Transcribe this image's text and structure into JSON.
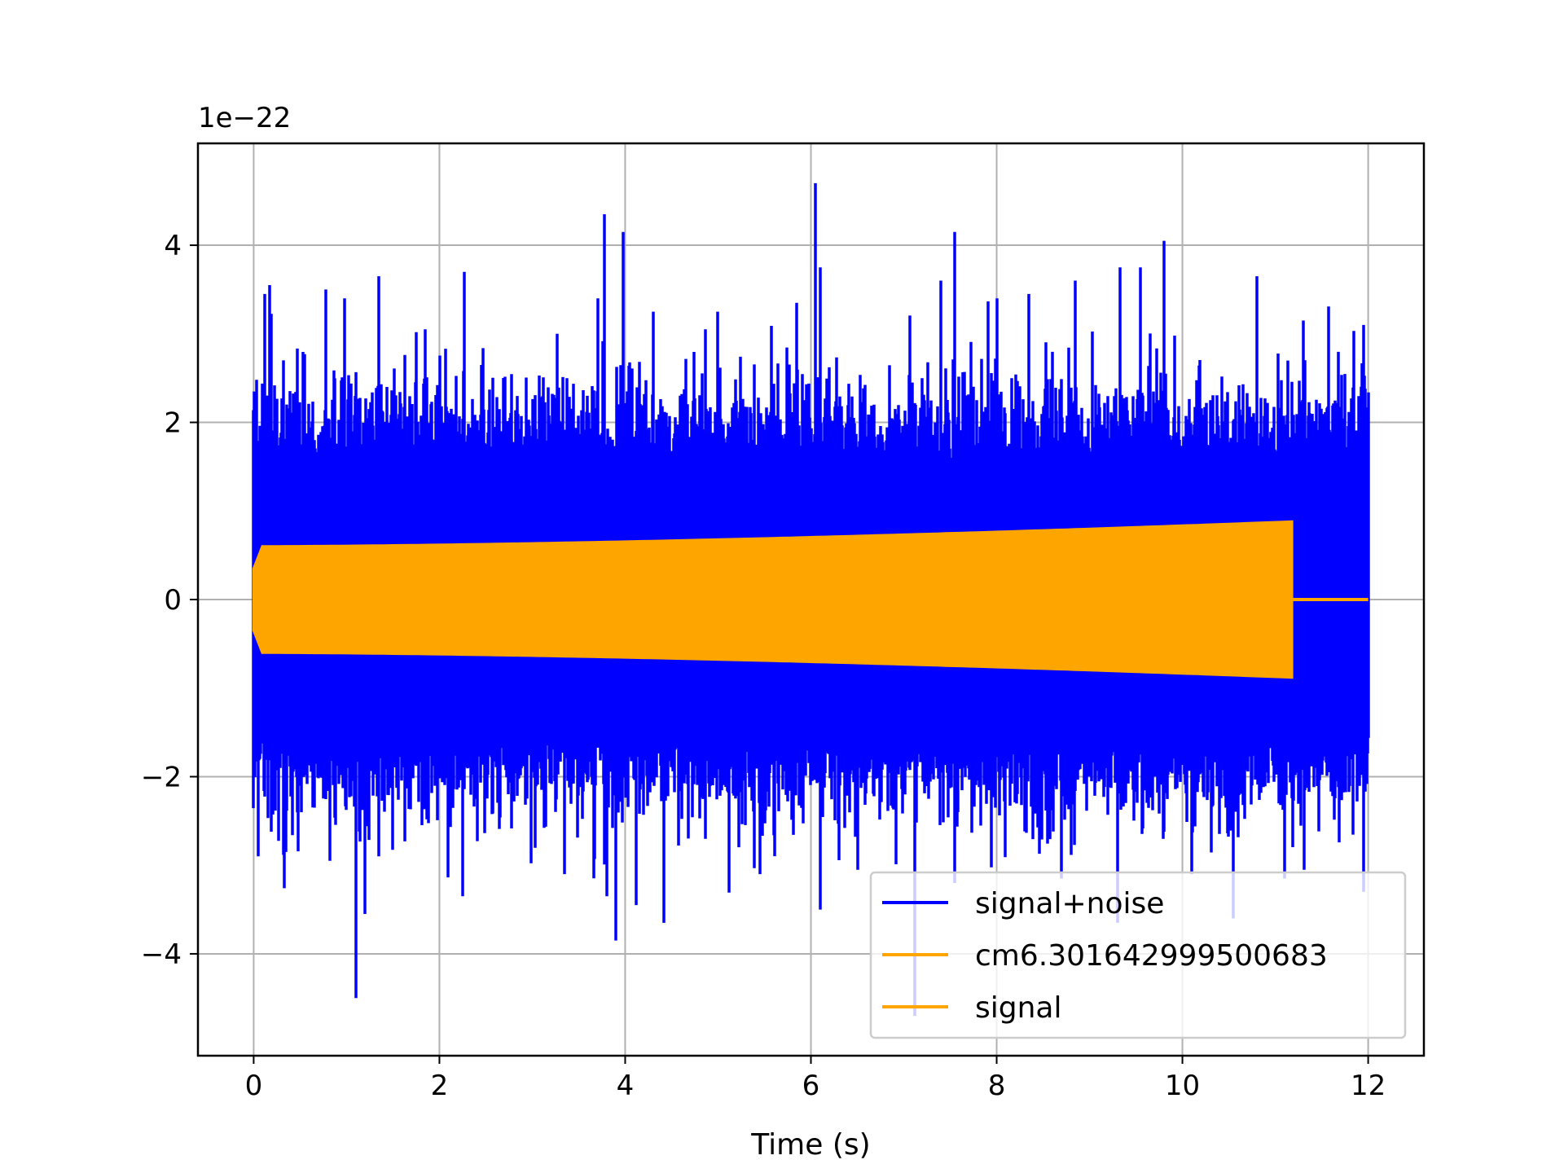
{
  "chart_data": {
    "type": "line",
    "title": "",
    "xlabel": "Time (s)",
    "ylabel": "",
    "offset_text": "1e−22",
    "xlim": [
      -0.6,
      12.6
    ],
    "ylim": [
      -5.15,
      5.15
    ],
    "x_ticks": [
      0,
      2,
      4,
      6,
      8,
      10,
      12
    ],
    "x_tick_labels": [
      "0",
      "2",
      "4",
      "6",
      "8",
      "10",
      "12"
    ],
    "y_ticks": [
      -4,
      -2,
      0,
      2,
      4
    ],
    "y_tick_labels": [
      "−4",
      "−2",
      "0",
      "2",
      "4"
    ],
    "grid": true,
    "legend_position": "lower-right",
    "series": [
      {
        "name": "signal+noise",
        "color": "#0000ff",
        "x_range": [
          0,
          12
        ],
        "typical_envelope": [
          -2.2,
          2.2
        ],
        "peaks": [
          {
            "x": 0.12,
            "y": 3.45
          },
          {
            "x": 0.17,
            "y": 3.55
          },
          {
            "x": 0.32,
            "y": 2.7
          },
          {
            "x": 0.78,
            "y": 3.5
          },
          {
            "x": 0.98,
            "y": 3.4
          },
          {
            "x": 1.35,
            "y": 3.65
          },
          {
            "x": 1.85,
            "y": 3.05
          },
          {
            "x": 2.27,
            "y": 3.7
          },
          {
            "x": 3.27,
            "y": 3.0
          },
          {
            "x": 3.78,
            "y": 4.35
          },
          {
            "x": 3.98,
            "y": 4.15
          },
          {
            "x": 4.3,
            "y": 3.25
          },
          {
            "x": 5.0,
            "y": 3.25
          },
          {
            "x": 5.85,
            "y": 3.35
          },
          {
            "x": 6.05,
            "y": 4.7
          },
          {
            "x": 6.1,
            "y": 3.75
          },
          {
            "x": 7.4,
            "y": 3.6
          },
          {
            "x": 7.55,
            "y": 4.15
          },
          {
            "x": 8.35,
            "y": 3.45
          },
          {
            "x": 8.85,
            "y": 3.6
          },
          {
            "x": 9.33,
            "y": 3.75
          },
          {
            "x": 9.55,
            "y": 3.75
          },
          {
            "x": 9.8,
            "y": 4.05
          },
          {
            "x": 10.8,
            "y": 3.65
          },
          {
            "x": 11.3,
            "y": 3.15
          },
          {
            "x": 11.95,
            "y": 3.1
          }
        ],
        "troughs": [
          {
            "x": 0.05,
            "y": -2.9
          },
          {
            "x": 0.35,
            "y": -2.85
          },
          {
            "x": 0.82,
            "y": -2.95
          },
          {
            "x": 1.1,
            "y": -4.5
          },
          {
            "x": 1.2,
            "y": -3.55
          },
          {
            "x": 1.35,
            "y": -2.9
          },
          {
            "x": 2.25,
            "y": -3.35
          },
          {
            "x": 3.35,
            "y": -3.1
          },
          {
            "x": 3.8,
            "y": -3.35
          },
          {
            "x": 3.9,
            "y": -3.85
          },
          {
            "x": 4.12,
            "y": -3.45
          },
          {
            "x": 4.42,
            "y": -3.65
          },
          {
            "x": 5.45,
            "y": -3.1
          },
          {
            "x": 6.1,
            "y": -3.5
          },
          {
            "x": 6.5,
            "y": -3.05
          },
          {
            "x": 7.12,
            "y": -4.7
          },
          {
            "x": 7.55,
            "y": -3.2
          },
          {
            "x": 8.7,
            "y": -3.15
          },
          {
            "x": 9.3,
            "y": -3.65
          },
          {
            "x": 10.1,
            "y": -3.1
          },
          {
            "x": 10.55,
            "y": -3.6
          },
          {
            "x": 11.1,
            "y": -3.15
          },
          {
            "x": 11.95,
            "y": -3.3
          }
        ]
      },
      {
        "name": "cm6.301642999500683",
        "color": "#ffa500",
        "x_range": [
          0,
          11.18
        ],
        "amplitude_start": 0.6,
        "amplitude_end": 0.88
      },
      {
        "name": "signal",
        "color": "#ffa500",
        "x_range": [
          0,
          12
        ],
        "amplitude_start": 0.6,
        "amplitude_end": 0.88,
        "chirp_end": 11.18,
        "after_chirp_value": 0
      }
    ]
  }
}
